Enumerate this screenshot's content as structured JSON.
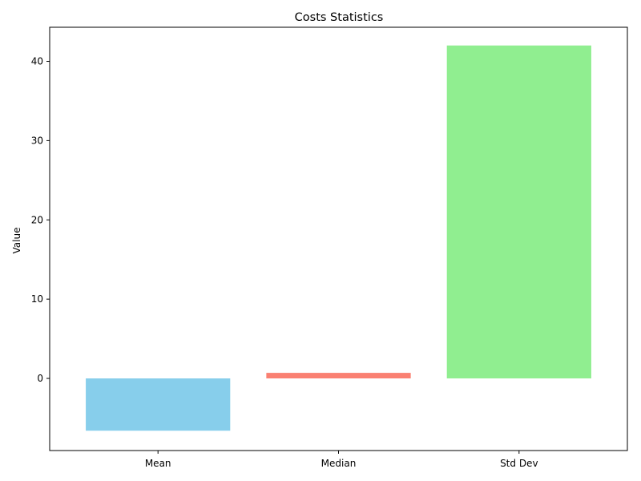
{
  "chart_data": {
    "type": "bar",
    "title": "Costs Statistics",
    "xlabel": "",
    "ylabel": "Value",
    "categories": [
      "Mean",
      "Median",
      "Std Dev"
    ],
    "values": [
      -6.6,
      0.7,
      42.0
    ],
    "colors": [
      "#87ceeb",
      "#fa8072",
      "#90ee90"
    ],
    "ylim": [
      -9.1,
      44.3
    ],
    "yticks": [
      0,
      10,
      20,
      30,
      40
    ],
    "ytick_labels": [
      "0",
      "10",
      "20",
      "30",
      "40"
    ],
    "grid": false,
    "legend": "none"
  }
}
